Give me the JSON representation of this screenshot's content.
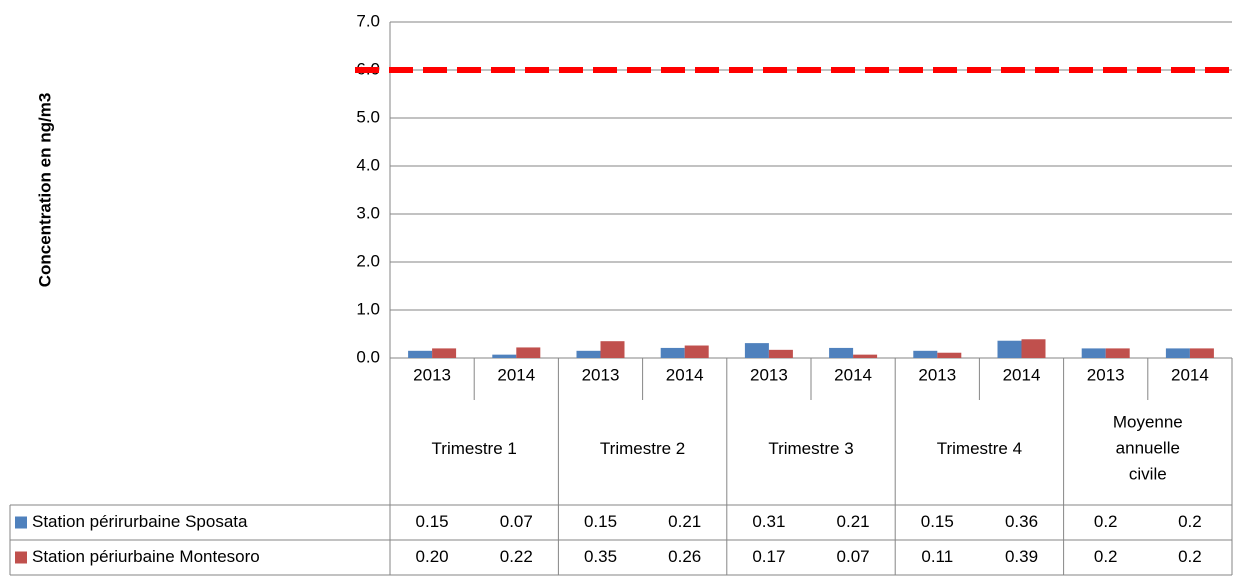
{
  "chart_data": {
    "type": "bar",
    "y_label": "Concentration en ng/m3",
    "categories": [
      "2013",
      "2014",
      "2013",
      "2014",
      "2013",
      "2014",
      "2013",
      "2014",
      "2013",
      "2014"
    ],
    "groups": [
      "Trimestre 1",
      "Trimestre 2",
      "Trimestre 3",
      "Trimestre 4",
      "Moyenne annuelle civile"
    ],
    "series": [
      {
        "name": "Station périrurbaine Sposata",
        "color": "#4f81bd",
        "values": [
          0.15,
          0.07,
          0.15,
          0.21,
          0.31,
          0.21,
          0.15,
          0.36,
          0.2,
          0.2
        ]
      },
      {
        "name": "Station périurbaine Montesoro",
        "color": "#c0504d",
        "values": [
          0.2,
          0.22,
          0.35,
          0.26,
          0.17,
          0.07,
          0.11,
          0.39,
          0.2,
          0.2
        ],
        "value_labels": [
          "0.20",
          "0.22",
          "0.35",
          "0.26",
          "0.17",
          "0.07",
          "0.11",
          "0.39",
          "0.2",
          "0.2"
        ]
      }
    ],
    "reference_line": {
      "value": 6,
      "color": "#ff0000"
    },
    "ylim": [
      0,
      7
    ],
    "yticks": [
      {
        "value": 0,
        "label": "0.0"
      },
      {
        "value": 1,
        "label": "1.0"
      },
      {
        "value": 2,
        "label": "2.0"
      },
      {
        "value": 3,
        "label": "3.0"
      },
      {
        "value": 4,
        "label": "4.0"
      },
      {
        "value": 5,
        "label": "5.0"
      },
      {
        "value": 6,
        "label": "6.0"
      },
      {
        "value": 7,
        "label": "7.0"
      }
    ],
    "grid": true
  }
}
